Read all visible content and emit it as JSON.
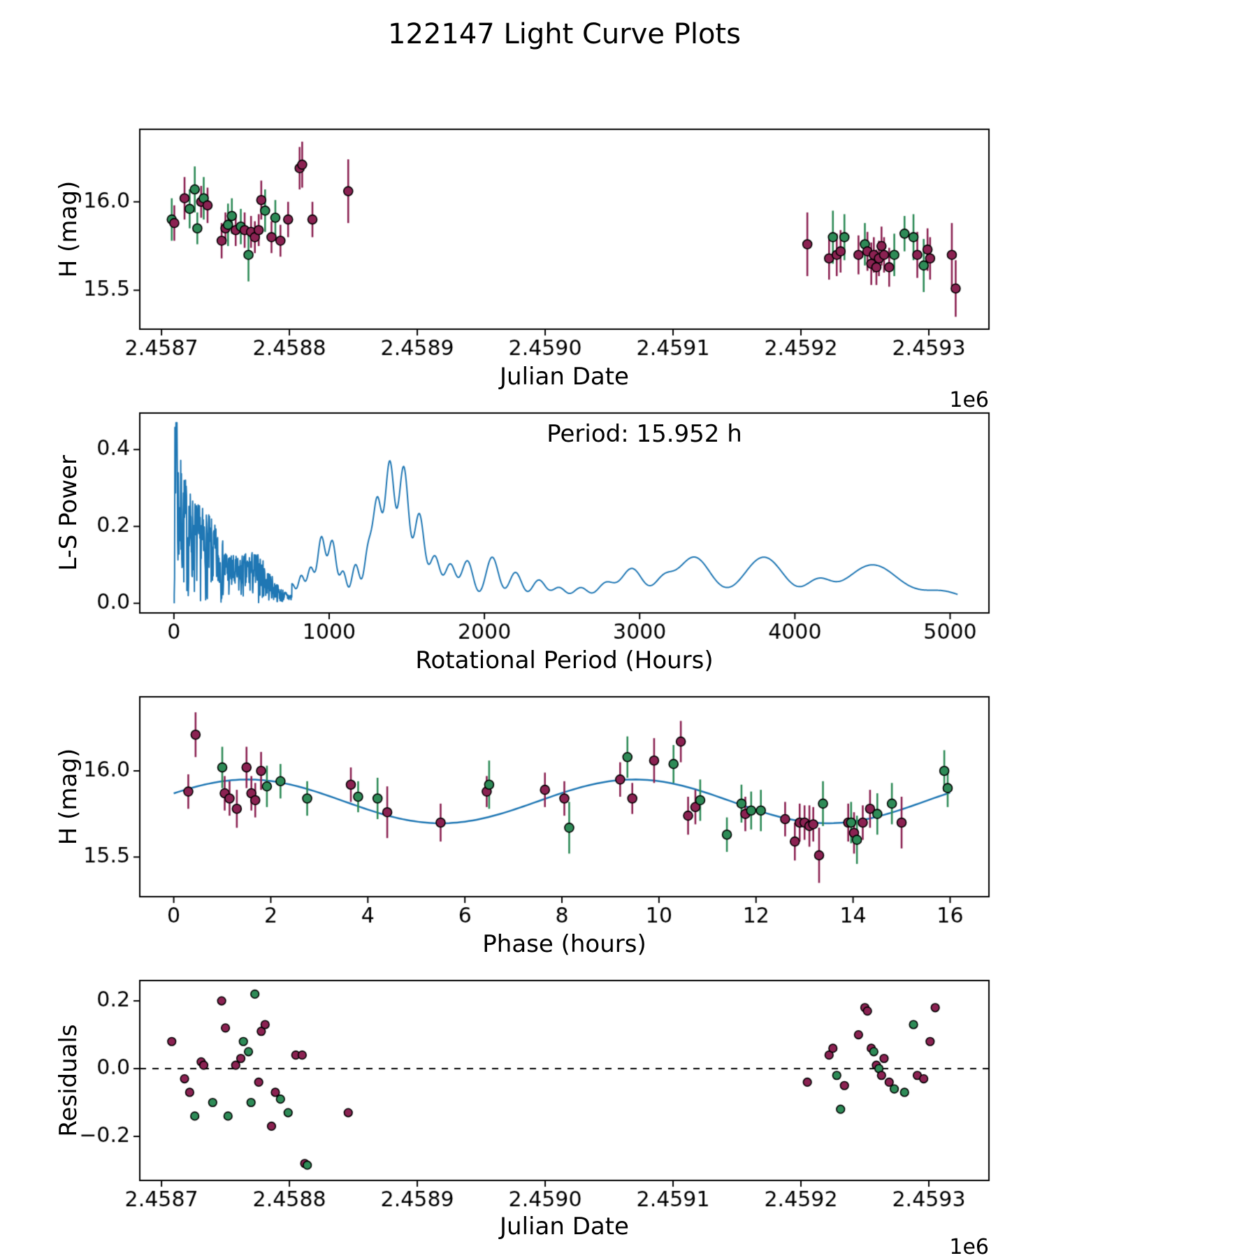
{
  "figure": {
    "title": "122147 Light Curve Plots"
  },
  "colors": {
    "line_blue": "#1f77b4",
    "scatter_green": "#2e8b57",
    "scatter_maroon": "#8b2252",
    "marker_edge": "#000000",
    "text": "#000000",
    "background": "#ffffff"
  },
  "chart_data": [
    {
      "id": "light_curve_jd",
      "type": "scatter",
      "xlabel": "Julian Date",
      "ylabel": "H (mag)",
      "x_offset_text": "1e6",
      "x_units": "Julian Date / 1e6",
      "xlim": [
        2.458683,
        2.459347
      ],
      "ylim": [
        15.28,
        16.41
      ],
      "xticks": [
        [
          2.4587,
          "2.4587"
        ],
        [
          2.4588,
          "2.4588"
        ],
        [
          2.4589,
          "2.4589"
        ],
        [
          2.459,
          "2.4590"
        ],
        [
          2.4591,
          "2.4591"
        ],
        [
          2.4592,
          "2.4592"
        ],
        [
          2.4593,
          "2.4593"
        ]
      ],
      "yticks": [
        [
          15.5,
          "15.5"
        ],
        [
          16.0,
          "16.0"
        ]
      ],
      "points": [
        [
          2.458708,
          15.9,
          0.12,
          "g"
        ],
        [
          2.45871,
          15.88,
          0.1,
          "m"
        ],
        [
          2.458718,
          16.02,
          0.12,
          "m"
        ],
        [
          2.458722,
          15.96,
          0.11,
          "g"
        ],
        [
          2.458726,
          16.07,
          0.13,
          "g"
        ],
        [
          2.458728,
          15.85,
          0.09,
          "g"
        ],
        [
          2.458731,
          16.0,
          0.09,
          "m"
        ],
        [
          2.458733,
          16.02,
          0.12,
          "g"
        ],
        [
          2.458736,
          15.98,
          0.1,
          "m"
        ],
        [
          2.458747,
          15.78,
          0.1,
          "m"
        ],
        [
          2.45875,
          15.85,
          0.09,
          "m"
        ],
        [
          2.458752,
          15.87,
          0.12,
          "g"
        ],
        [
          2.458755,
          15.92,
          0.1,
          "g"
        ],
        [
          2.458758,
          15.84,
          0.09,
          "m"
        ],
        [
          2.458762,
          15.86,
          0.1,
          "g"
        ],
        [
          2.458765,
          15.84,
          0.1,
          "m"
        ],
        [
          2.458768,
          15.7,
          0.15,
          "g"
        ],
        [
          2.45877,
          15.83,
          0.09,
          "m"
        ],
        [
          2.458773,
          15.8,
          0.09,
          "m"
        ],
        [
          2.458776,
          15.84,
          0.09,
          "m"
        ],
        [
          2.458778,
          16.01,
          0.11,
          "m"
        ],
        [
          2.458781,
          15.95,
          0.12,
          "g"
        ],
        [
          2.458786,
          15.8,
          0.09,
          "m"
        ],
        [
          2.458789,
          15.91,
          0.1,
          "g"
        ],
        [
          2.458793,
          15.78,
          0.09,
          "m"
        ],
        [
          2.458799,
          15.9,
          0.1,
          "m"
        ],
        [
          2.458808,
          16.19,
          0.12,
          "m"
        ],
        [
          2.45881,
          16.21,
          0.13,
          "m"
        ],
        [
          2.458818,
          15.9,
          0.1,
          "m"
        ],
        [
          2.458846,
          16.06,
          0.18,
          "m"
        ],
        [
          2.459205,
          15.76,
          0.18,
          "m"
        ],
        [
          2.459222,
          15.68,
          0.12,
          "m"
        ],
        [
          2.459225,
          15.8,
          0.15,
          "g"
        ],
        [
          2.459228,
          15.7,
          0.12,
          "m"
        ],
        [
          2.459231,
          15.72,
          0.12,
          "m"
        ],
        [
          2.459234,
          15.8,
          0.13,
          "g"
        ],
        [
          2.459245,
          15.7,
          0.11,
          "m"
        ],
        [
          2.45925,
          15.76,
          0.12,
          "g"
        ],
        [
          2.459252,
          15.72,
          0.11,
          "m"
        ],
        [
          2.459255,
          15.65,
          0.12,
          "m"
        ],
        [
          2.459257,
          15.7,
          0.1,
          "m"
        ],
        [
          2.459259,
          15.63,
          0.1,
          "m"
        ],
        [
          2.459261,
          15.68,
          0.1,
          "m"
        ],
        [
          2.459263,
          15.75,
          0.11,
          "m"
        ],
        [
          2.459265,
          15.7,
          0.1,
          "m"
        ],
        [
          2.459269,
          15.63,
          0.11,
          "m"
        ],
        [
          2.459273,
          15.7,
          0.12,
          "g"
        ],
        [
          2.459281,
          15.82,
          0.1,
          "g"
        ],
        [
          2.459288,
          15.8,
          0.13,
          "g"
        ],
        [
          2.459291,
          15.7,
          0.13,
          "m"
        ],
        [
          2.459296,
          15.64,
          0.15,
          "g"
        ],
        [
          2.459299,
          15.73,
          0.12,
          "m"
        ],
        [
          2.459301,
          15.68,
          0.12,
          "m"
        ],
        [
          2.459318,
          15.7,
          0.18,
          "m"
        ],
        [
          2.459321,
          15.51,
          0.16,
          "m"
        ]
      ]
    },
    {
      "id": "periodogram",
      "type": "line",
      "xlabel": "Rotational Period (Hours)",
      "ylabel": "L-S Power",
      "annotation": "Period: 15.952 h",
      "best_period_hours": 15.952,
      "xlim": [
        -220,
        5250
      ],
      "ylim": [
        -0.025,
        0.495
      ],
      "xticks": [
        [
          0,
          "0"
        ],
        [
          1000,
          "1000"
        ],
        [
          2000,
          "2000"
        ],
        [
          3000,
          "3000"
        ],
        [
          4000,
          "4000"
        ],
        [
          5000,
          "5000"
        ]
      ],
      "yticks": [
        [
          0.0,
          "0.0"
        ],
        [
          0.2,
          "0.2"
        ],
        [
          0.4,
          "0.4"
        ]
      ],
      "noise": {
        "x_start": 2,
        "x_end": 760,
        "seed": 7,
        "max_power": 0.47
      },
      "peaks": [
        [
          760,
          0.05,
          20
        ],
        [
          820,
          0.07,
          20
        ],
        [
          880,
          0.09,
          22
        ],
        [
          950,
          0.17,
          25
        ],
        [
          1020,
          0.16,
          25
        ],
        [
          1090,
          0.08,
          22
        ],
        [
          1170,
          0.1,
          25
        ],
        [
          1250,
          0.13,
          25
        ],
        [
          1310,
          0.26,
          28
        ],
        [
          1390,
          0.36,
          30
        ],
        [
          1480,
          0.35,
          32
        ],
        [
          1580,
          0.23,
          33
        ],
        [
          1680,
          0.12,
          33
        ],
        [
          1780,
          0.1,
          35
        ],
        [
          1890,
          0.11,
          38
        ],
        [
          2050,
          0.12,
          42
        ],
        [
          2200,
          0.08,
          42
        ],
        [
          2350,
          0.06,
          45
        ],
        [
          2480,
          0.04,
          45
        ],
        [
          2620,
          0.04,
          48
        ],
        [
          2780,
          0.05,
          55
        ],
        [
          2950,
          0.09,
          70
        ],
        [
          3150,
          0.05,
          60
        ],
        [
          3350,
          0.12,
          110
        ],
        [
          3800,
          0.12,
          130
        ],
        [
          4150,
          0.05,
          80
        ],
        [
          4500,
          0.1,
          170
        ],
        [
          4950,
          0.03,
          130
        ]
      ]
    },
    {
      "id": "phased_light_curve",
      "type": "scatter+line",
      "xlabel": "Phase (hours)",
      "ylabel": "H (mag)",
      "xlim": [
        -0.7,
        16.8
      ],
      "ylim": [
        15.27,
        16.43
      ],
      "xticks": [
        [
          0,
          "0"
        ],
        [
          2,
          "2"
        ],
        [
          4,
          "4"
        ],
        [
          6,
          "6"
        ],
        [
          8,
          "8"
        ],
        [
          10,
          "10"
        ],
        [
          12,
          "12"
        ],
        [
          14,
          "14"
        ],
        [
          16,
          "16"
        ]
      ],
      "yticks": [
        [
          15.5,
          "15.5"
        ],
        [
          16.0,
          "16.0"
        ]
      ],
      "fit": {
        "mean": 15.823,
        "amplitude": 0.127,
        "period_hours": 7.976,
        "phase_of_max": 1.52,
        "x_start": 0,
        "x_end": 16
      },
      "points": [
        [
          0.3,
          15.88,
          0.1,
          "m"
        ],
        [
          0.45,
          16.21,
          0.13,
          "m"
        ],
        [
          1.0,
          16.02,
          0.12,
          "g"
        ],
        [
          1.05,
          15.87,
          0.1,
          "m"
        ],
        [
          1.15,
          15.84,
          0.1,
          "m"
        ],
        [
          1.3,
          15.78,
          0.11,
          "m"
        ],
        [
          1.5,
          16.02,
          0.12,
          "m"
        ],
        [
          1.6,
          15.87,
          0.1,
          "m"
        ],
        [
          1.68,
          15.83,
          0.1,
          "m"
        ],
        [
          1.8,
          16.0,
          0.11,
          "m"
        ],
        [
          1.92,
          15.91,
          0.12,
          "g"
        ],
        [
          2.2,
          15.94,
          0.1,
          "g"
        ],
        [
          2.75,
          15.84,
          0.1,
          "g"
        ],
        [
          3.65,
          15.92,
          0.1,
          "m"
        ],
        [
          3.8,
          15.85,
          0.09,
          "g"
        ],
        [
          4.2,
          15.84,
          0.12,
          "g"
        ],
        [
          4.4,
          15.76,
          0.15,
          "m"
        ],
        [
          5.5,
          15.7,
          0.11,
          "m"
        ],
        [
          6.45,
          15.88,
          0.09,
          "m"
        ],
        [
          6.5,
          15.92,
          0.14,
          "g"
        ],
        [
          7.65,
          15.89,
          0.1,
          "m"
        ],
        [
          8.05,
          15.84,
          0.1,
          "m"
        ],
        [
          8.15,
          15.67,
          0.15,
          "g"
        ],
        [
          9.2,
          15.95,
          0.1,
          "m"
        ],
        [
          9.35,
          16.08,
          0.12,
          "g"
        ],
        [
          9.45,
          15.84,
          0.09,
          "m"
        ],
        [
          9.9,
          16.06,
          0.13,
          "m"
        ],
        [
          10.3,
          16.04,
          0.11,
          "g"
        ],
        [
          10.45,
          16.17,
          0.12,
          "m"
        ],
        [
          10.6,
          15.74,
          0.11,
          "m"
        ],
        [
          10.75,
          15.79,
          0.1,
          "m"
        ],
        [
          10.85,
          15.83,
          0.12,
          "g"
        ],
        [
          11.4,
          15.63,
          0.1,
          "g"
        ],
        [
          11.7,
          15.81,
          0.11,
          "g"
        ],
        [
          11.78,
          15.75,
          0.1,
          "m"
        ],
        [
          11.9,
          15.77,
          0.11,
          "g"
        ],
        [
          12.1,
          15.77,
          0.12,
          "g"
        ],
        [
          12.6,
          15.72,
          0.1,
          "m"
        ],
        [
          12.8,
          15.59,
          0.11,
          "m"
        ],
        [
          12.9,
          15.7,
          0.11,
          "m"
        ],
        [
          13.0,
          15.7,
          0.1,
          "m"
        ],
        [
          13.1,
          15.68,
          0.12,
          "m"
        ],
        [
          13.18,
          15.69,
          0.1,
          "m"
        ],
        [
          13.3,
          15.51,
          0.16,
          "m"
        ],
        [
          13.38,
          15.81,
          0.13,
          "g"
        ],
        [
          13.9,
          15.7,
          0.11,
          "m"
        ],
        [
          13.96,
          15.7,
          0.12,
          "g"
        ],
        [
          14.02,
          15.64,
          0.12,
          "m"
        ],
        [
          14.08,
          15.6,
          0.14,
          "g"
        ],
        [
          14.2,
          15.7,
          0.1,
          "m"
        ],
        [
          14.35,
          15.78,
          0.11,
          "m"
        ],
        [
          14.5,
          15.75,
          0.12,
          "g"
        ],
        [
          14.8,
          15.81,
          0.12,
          "g"
        ],
        [
          15.0,
          15.7,
          0.15,
          "m"
        ],
        [
          15.88,
          16.0,
          0.12,
          "g"
        ],
        [
          15.95,
          15.9,
          0.11,
          "g"
        ]
      ]
    },
    {
      "id": "residuals",
      "type": "scatter",
      "xlabel": "Julian Date",
      "ylabel": "Residuals",
      "x_offset_text": "1e6",
      "xlim": [
        2.458683,
        2.459347
      ],
      "ylim": [
        -0.33,
        0.26
      ],
      "hline": 0,
      "xticks": [
        [
          2.4587,
          "2.4587"
        ],
        [
          2.4588,
          "2.4588"
        ],
        [
          2.4589,
          "2.4589"
        ],
        [
          2.459,
          "2.4590"
        ],
        [
          2.4591,
          "2.4591"
        ],
        [
          2.4592,
          "2.4592"
        ],
        [
          2.4593,
          "2.4593"
        ]
      ],
      "yticks": [
        [
          -0.2,
          "−0.2"
        ],
        [
          0.0,
          "0.0"
        ],
        [
          0.2,
          "0.2"
        ]
      ],
      "points": [
        [
          2.458708,
          0.08,
          "m"
        ],
        [
          2.458718,
          -0.03,
          "m"
        ],
        [
          2.458722,
          -0.07,
          "m"
        ],
        [
          2.458726,
          -0.14,
          "g"
        ],
        [
          2.458731,
          0.02,
          "m"
        ],
        [
          2.458733,
          0.01,
          "m"
        ],
        [
          2.45874,
          -0.1,
          "g"
        ],
        [
          2.458747,
          0.2,
          "m"
        ],
        [
          2.45875,
          0.12,
          "m"
        ],
        [
          2.458752,
          -0.14,
          "g"
        ],
        [
          2.458758,
          0.01,
          "m"
        ],
        [
          2.458762,
          0.03,
          "m"
        ],
        [
          2.458764,
          0.08,
          "g"
        ],
        [
          2.458768,
          0.05,
          "g"
        ],
        [
          2.45877,
          -0.1,
          "g"
        ],
        [
          2.458773,
          0.22,
          "g"
        ],
        [
          2.458776,
          -0.04,
          "m"
        ],
        [
          2.458778,
          0.11,
          "m"
        ],
        [
          2.458781,
          0.13,
          "m"
        ],
        [
          2.458786,
          -0.17,
          "m"
        ],
        [
          2.458789,
          -0.07,
          "m"
        ],
        [
          2.458793,
          -0.09,
          "g"
        ],
        [
          2.458799,
          -0.13,
          "g"
        ],
        [
          2.458805,
          0.04,
          "m"
        ],
        [
          2.45881,
          0.04,
          "m"
        ],
        [
          2.458812,
          -0.28,
          "m"
        ],
        [
          2.458814,
          -0.285,
          "g"
        ],
        [
          2.458846,
          -0.13,
          "m"
        ],
        [
          2.459205,
          -0.04,
          "m"
        ],
        [
          2.459222,
          0.04,
          "m"
        ],
        [
          2.459225,
          0.06,
          "m"
        ],
        [
          2.459228,
          -0.02,
          "g"
        ],
        [
          2.459231,
          -0.12,
          "g"
        ],
        [
          2.459234,
          -0.05,
          "m"
        ],
        [
          2.459245,
          0.1,
          "m"
        ],
        [
          2.45925,
          0.18,
          "m"
        ],
        [
          2.459252,
          0.17,
          "m"
        ],
        [
          2.459255,
          0.06,
          "m"
        ],
        [
          2.459257,
          0.05,
          "g"
        ],
        [
          2.459259,
          0.01,
          "m"
        ],
        [
          2.459261,
          0.0,
          "g"
        ],
        [
          2.459263,
          -0.02,
          "m"
        ],
        [
          2.459265,
          0.03,
          "m"
        ],
        [
          2.459269,
          -0.04,
          "m"
        ],
        [
          2.459273,
          -0.06,
          "g"
        ],
        [
          2.459281,
          -0.07,
          "g"
        ],
        [
          2.459288,
          0.13,
          "g"
        ],
        [
          2.459291,
          -0.02,
          "m"
        ],
        [
          2.459296,
          -0.03,
          "m"
        ],
        [
          2.459301,
          0.08,
          "m"
        ],
        [
          2.459305,
          0.18,
          "m"
        ]
      ]
    }
  ]
}
